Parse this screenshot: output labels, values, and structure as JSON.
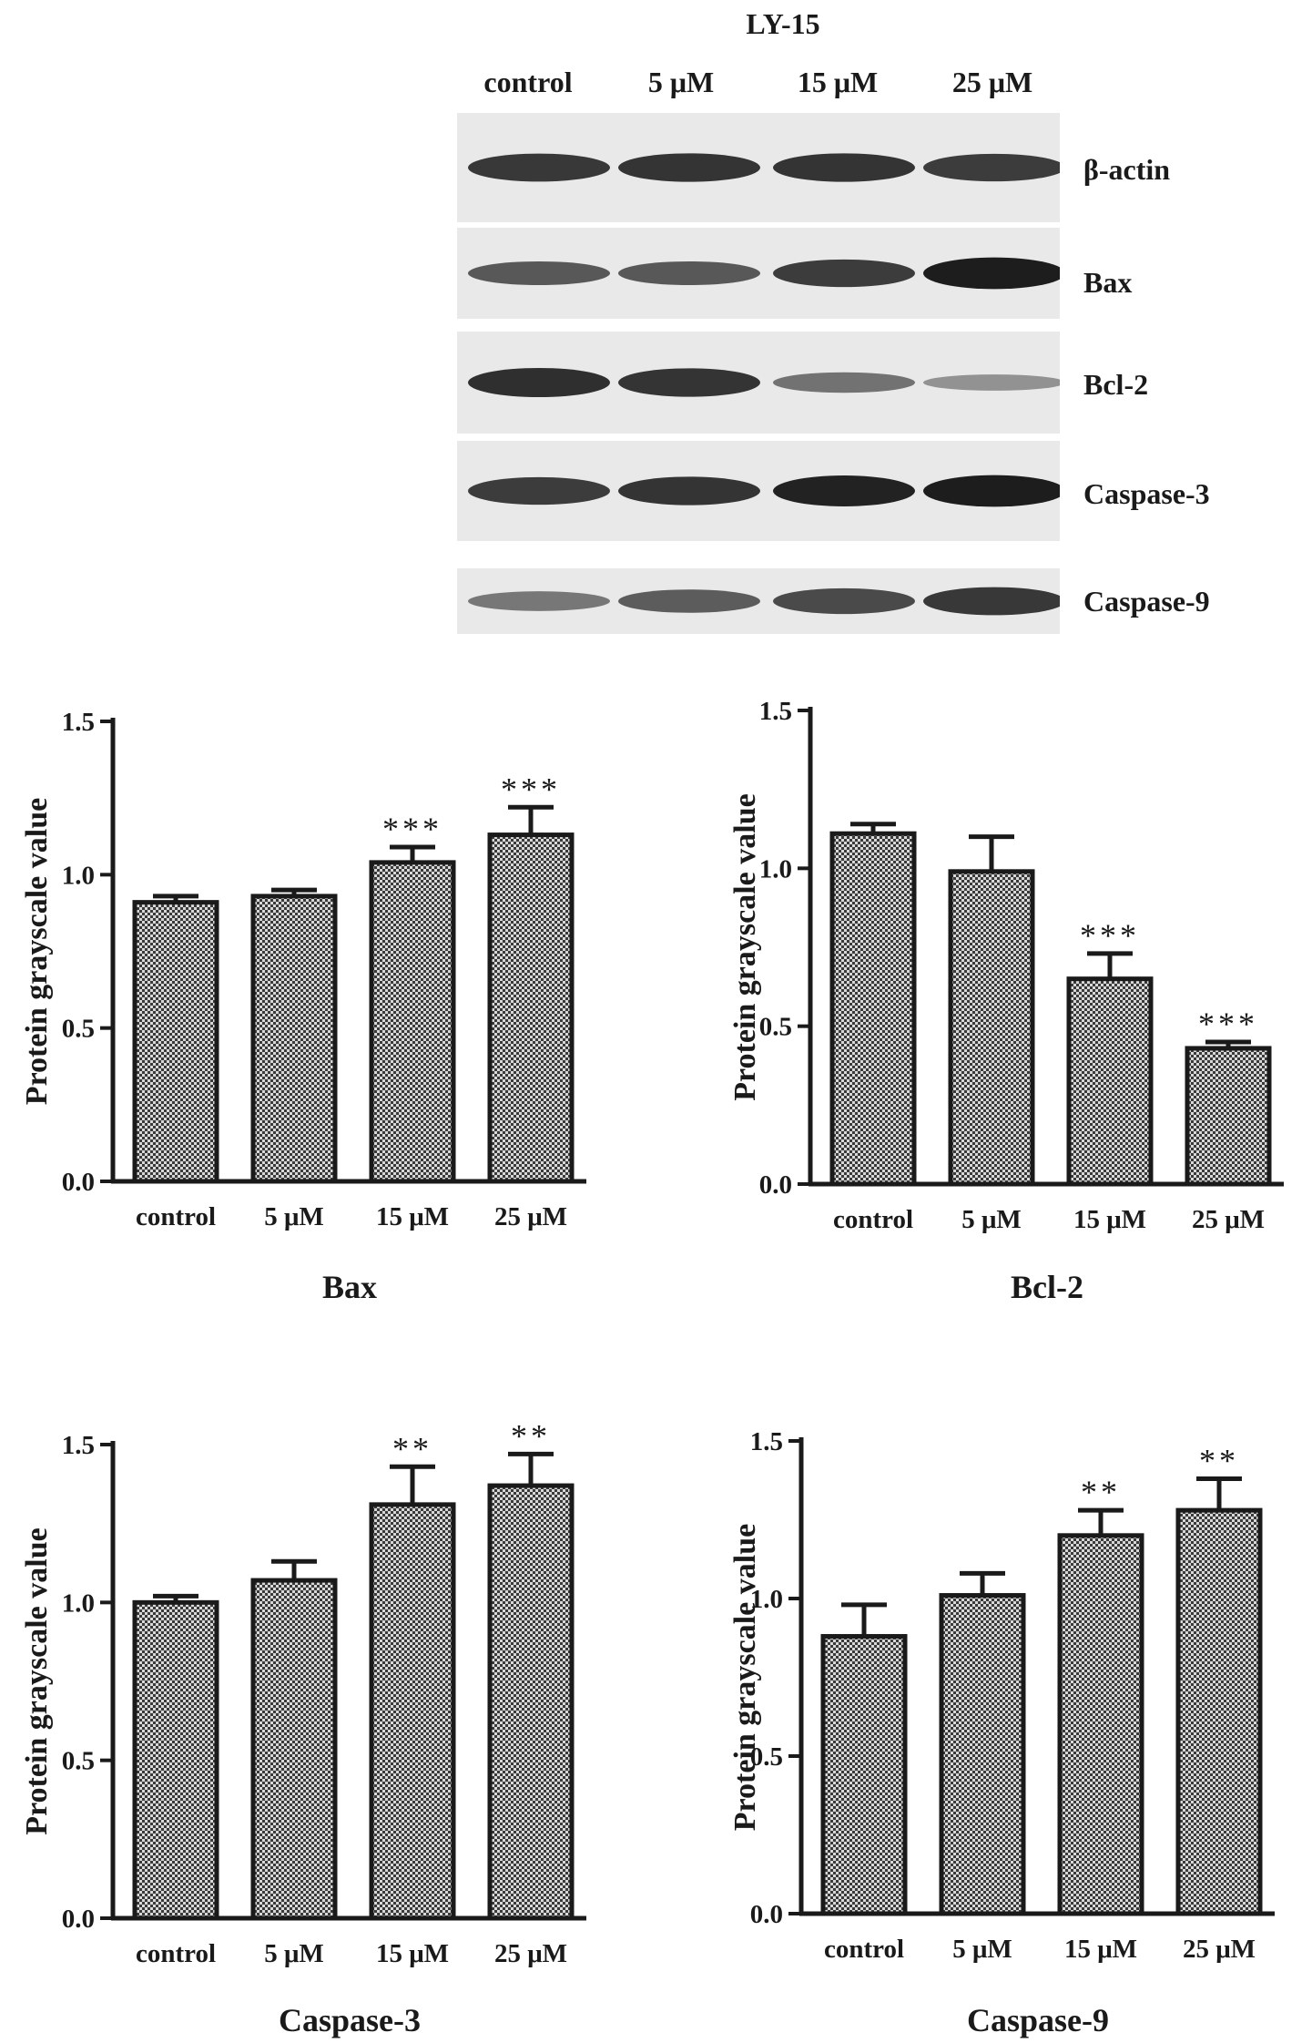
{
  "blot": {
    "treatment_label": "LY-15",
    "lanes": [
      "control",
      "5 μM",
      "15 μM",
      "25 μM"
    ],
    "proteins": [
      {
        "name": "β-actin",
        "intensity": [
          0.8,
          0.82,
          0.82,
          0.78
        ]
      },
      {
        "name": "Bax",
        "intensity": [
          0.62,
          0.62,
          0.78,
          0.95
        ]
      },
      {
        "name": "Bcl-2",
        "intensity": [
          0.85,
          0.82,
          0.48,
          0.3
        ]
      },
      {
        "name": "Caspase-3",
        "intensity": [
          0.78,
          0.82,
          0.92,
          0.95
        ]
      },
      {
        "name": "Caspase-9",
        "intensity": [
          0.45,
          0.6,
          0.7,
          0.8
        ]
      }
    ]
  },
  "chart_data": [
    {
      "type": "bar",
      "title": "Bax",
      "ylabel": "Protein grayscale value",
      "categories": [
        "control",
        "5 μM",
        "15 μM",
        "25 μM"
      ],
      "values": [
        0.91,
        0.93,
        1.04,
        1.13
      ],
      "errors": [
        0.02,
        0.02,
        0.05,
        0.09
      ],
      "significance": [
        "",
        "",
        "***",
        "***"
      ],
      "ylim": [
        0,
        1.5
      ],
      "yticks": [
        "0.0",
        "0.5",
        "1.0",
        "1.5"
      ]
    },
    {
      "type": "bar",
      "title": "Bcl-2",
      "ylabel": "Protein grayscale value",
      "categories": [
        "control",
        "5 μM",
        "15 μM",
        "25 μM"
      ],
      "values": [
        1.11,
        0.99,
        0.65,
        0.43
      ],
      "errors": [
        0.03,
        0.11,
        0.08,
        0.02
      ],
      "significance": [
        "",
        "",
        "***",
        "***"
      ],
      "ylim": [
        0,
        1.5
      ],
      "yticks": [
        "0.0",
        "0.5",
        "1.0",
        "1.5"
      ]
    },
    {
      "type": "bar",
      "title": "Caspase-3",
      "ylabel": "Protein grayscale value",
      "categories": [
        "control",
        "5 μM",
        "15 μM",
        "25 μM"
      ],
      "values": [
        1.0,
        1.07,
        1.31,
        1.37
      ],
      "errors": [
        0.02,
        0.06,
        0.12,
        0.1
      ],
      "significance": [
        "",
        "",
        "**",
        "**"
      ],
      "ylim": [
        0,
        1.5
      ],
      "yticks": [
        "0.0",
        "0.5",
        "1.0",
        "1.5"
      ]
    },
    {
      "type": "bar",
      "title": "Caspase-9",
      "ylabel": "Protein grayscale value",
      "categories": [
        "control",
        "5 μM",
        "15 μM",
        "25 μM"
      ],
      "values": [
        0.88,
        1.01,
        1.2,
        1.28
      ],
      "errors": [
        0.1,
        0.07,
        0.08,
        0.1
      ],
      "significance": [
        "",
        "",
        "**",
        "**"
      ],
      "ylim": [
        0,
        1.5
      ],
      "yticks": [
        "0.0",
        "0.5",
        "1.0",
        "1.5"
      ]
    }
  ]
}
